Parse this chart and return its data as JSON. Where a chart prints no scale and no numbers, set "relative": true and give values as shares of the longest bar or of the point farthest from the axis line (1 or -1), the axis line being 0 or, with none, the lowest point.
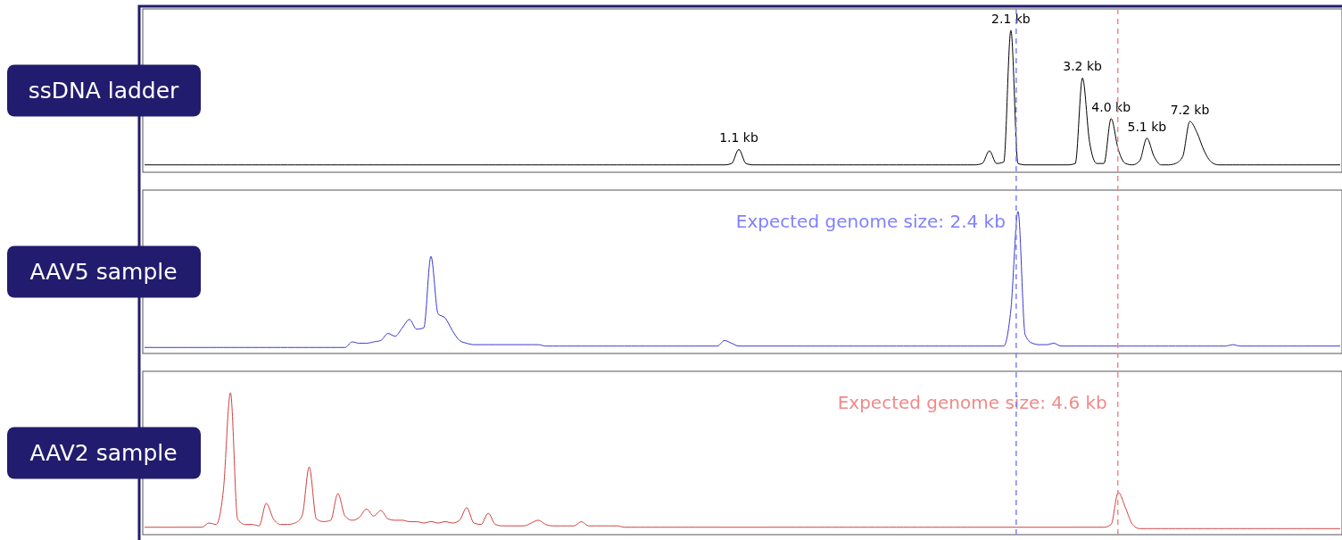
{
  "chart_data": [
    {
      "type": "line",
      "title": "ssDNA ladder",
      "relative": true,
      "categories": [
        null,
        null,
        null,
        null,
        null,
        null,
        null,
        null,
        null,
        null,
        null,
        null,
        null,
        null,
        null,
        null,
        null,
        null,
        null,
        null,
        null,
        null,
        null,
        null,
        null,
        null,
        null,
        null,
        null,
        null,
        null,
        null,
        null,
        null,
        null,
        null,
        null,
        null,
        null,
        null,
        null,
        null,
        null,
        null,
        null,
        null,
        null,
        null,
        null,
        null,
        null,
        null,
        null,
        null,
        null,
        null,
        null,
        null,
        null,
        null,
        null,
        null,
        null,
        null,
        null,
        null,
        null,
        null,
        null,
        null,
        null,
        null,
        null,
        null,
        null,
        null,
        null,
        null,
        null,
        null,
        null,
        null,
        null,
        null,
        null,
        null,
        null,
        null,
        null,
        null,
        null,
        null,
        null,
        null,
        null,
        null,
        null,
        null,
        null,
        null,
        null,
        null,
        null,
        null,
        null,
        null,
        null,
        null,
        null,
        null,
        null,
        null,
        null,
        null,
        null,
        null,
        null,
        null,
        null,
        null,
        null,
        null,
        null,
        null,
        null,
        null,
        null,
        null,
        null,
        null,
        null,
        null,
        null,
        null,
        null,
        null,
        null,
        null,
        null,
        null,
        null,
        null,
        null,
        null,
        null,
        null,
        null,
        null,
        null,
        null,
        null,
        null,
        null,
        null,
        null,
        null,
        null,
        null,
        null,
        null,
        null,
        null,
        null,
        null,
        null,
        null,
        null,
        null
      ],
      "series": [
        {
          "color": "#000000",
          "values": [
            0.04,
            0.04,
            0.04,
            0.04,
            0.04,
            0.04,
            0.04,
            0.04,
            0.04,
            0.04,
            0.04,
            0.04,
            0.04,
            0.04,
            0.04,
            0.04,
            0.04,
            0.04,
            0.04,
            0.04,
            0.04,
            0.04,
            0.04,
            0.04,
            0.04,
            0.04,
            0.04,
            0.04,
            0.04,
            0.04,
            0.04,
            0.04,
            0.04,
            0.04,
            0.04,
            0.04,
            0.04,
            0.04,
            0.04,
            0.04,
            0.04,
            0.04,
            0.04,
            0.04,
            0.04,
            0.04,
            0.04,
            0.04,
            0.04,
            0.04,
            0.04,
            0.04,
            0.04,
            0.04,
            0.04,
            0.04,
            0.04,
            0.04,
            0.04,
            0.04,
            0.04,
            0.04,
            0.04,
            0.04,
            0.04,
            0.04,
            0.04,
            0.04,
            0.04,
            0.04,
            0.04,
            0.04,
            0.04,
            0.04,
            0.04,
            0.04,
            0.04,
            0.04,
            0.04,
            0.04,
            0.04,
            0.04,
            0.05,
            0.15,
            0.05,
            0.04,
            0.04,
            0.04,
            0.04,
            0.04,
            0.04,
            0.04,
            0.04,
            0.04,
            0.04,
            0.04,
            0.04,
            0.04,
            0.04,
            0.04,
            0.04,
            0.04,
            0.04,
            0.04,
            0.04,
            0.04,
            0.04,
            0.04,
            0.04,
            0.04,
            0.04,
            0.04,
            0.04,
            0.04,
            0.04,
            0.04,
            0.04,
            0.05,
            0.14,
            0.05,
            0.06,
            1,
            0.05,
            0.04,
            0.04,
            0.04,
            0.04,
            0.04,
            0.04,
            0.04,
            0.05,
            0.66,
            0.2,
            0.05,
            0.05,
            0.37,
            0.15,
            0.05,
            0.04,
            0.07,
            0.23,
            0.1,
            0.04,
            0.04,
            0.05,
            0.1,
            0.35,
            0.27,
            0.14,
            0.06,
            0.04,
            0.04,
            0.04,
            0.04,
            0.04,
            0.04,
            0.04,
            0.04,
            0.04,
            0.04,
            0.04,
            0.04,
            0.04,
            0.04,
            0.04,
            0.04,
            0.04,
            0.04
          ]
        }
      ],
      "annotations": [
        {
          "text": "1.1 kb",
          "y": 0.15
        },
        {
          "text": "2.1 kb",
          "y": 1
        },
        {
          "text": "3.2 kb",
          "y": 0.66
        },
        {
          "text": "4.0 kb",
          "y": 0.37
        },
        {
          "text": "5.1 kb",
          "y": 0.23
        },
        {
          "text": "7.2 kb",
          "y": 0.35
        }
      ]
    },
    {
      "type": "line",
      "title": "AAV5 sample",
      "relative": true,
      "categories": [
        null,
        null,
        null,
        null,
        null,
        null,
        null,
        null,
        null,
        null,
        null,
        null,
        null,
        null,
        null,
        null,
        null,
        null,
        null,
        null,
        null,
        null,
        null,
        null,
        null,
        null,
        null,
        null,
        null,
        null,
        null,
        null,
        null,
        null,
        null,
        null,
        null,
        null,
        null,
        null,
        null,
        null,
        null,
        null,
        null,
        null,
        null,
        null,
        null,
        null,
        null,
        null,
        null,
        null,
        null,
        null,
        null,
        null,
        null,
        null,
        null,
        null,
        null,
        null,
        null,
        null,
        null,
        null,
        null,
        null,
        null,
        null,
        null,
        null,
        null,
        null,
        null,
        null,
        null,
        null,
        null,
        null,
        null,
        null,
        null,
        null,
        null,
        null,
        null,
        null,
        null,
        null,
        null,
        null,
        null,
        null,
        null,
        null,
        null,
        null,
        null,
        null,
        null,
        null,
        null,
        null,
        null,
        null,
        null,
        null,
        null,
        null,
        null,
        null,
        null,
        null,
        null,
        null,
        null,
        null,
        null,
        null,
        null,
        null,
        null,
        null,
        null,
        null,
        null,
        null,
        null,
        null,
        null,
        null,
        null,
        null,
        null,
        null,
        null,
        null,
        null,
        null,
        null,
        null,
        null,
        null,
        null,
        null,
        null,
        null,
        null,
        null,
        null,
        null,
        null,
        null,
        null,
        null,
        null,
        null,
        null,
        null,
        null,
        null,
        null,
        null,
        null,
        null
      ],
      "series": [
        {
          "color": "#3a3ad0",
          "values": [
            0.03,
            0.03,
            0.03,
            0.03,
            0.03,
            0.03,
            0.03,
            0.03,
            0.03,
            0.03,
            0.03,
            0.03,
            0.03,
            0.03,
            0.03,
            0.03,
            0.03,
            0.03,
            0.03,
            0.03,
            0.03,
            0.03,
            0.03,
            0.03,
            0.03,
            0.03,
            0.03,
            0.03,
            0.03,
            0.07,
            0.06,
            0.06,
            0.07,
            0.08,
            0.13,
            0.11,
            0.17,
            0.23,
            0.16,
            0.17,
            0.68,
            0.27,
            0.24,
            0.15,
            0.08,
            0.06,
            0.05,
            0.05,
            0.05,
            0.05,
            0.05,
            0.05,
            0.05,
            0.05,
            0.05,
            0.05,
            0.04,
            0.04,
            0.04,
            0.04,
            0.04,
            0.04,
            0.04,
            0.04,
            0.04,
            0.04,
            0.04,
            0.04,
            0.04,
            0.04,
            0.04,
            0.04,
            0.04,
            0.04,
            0.04,
            0.04,
            0.04,
            0.04,
            0.04,
            0.04,
            0.04,
            0.08,
            0.06,
            0.04,
            0.04,
            0.04,
            0.04,
            0.04,
            0.04,
            0.04,
            0.04,
            0.04,
            0.04,
            0.04,
            0.04,
            0.04,
            0.04,
            0.04,
            0.04,
            0.04,
            0.04,
            0.04,
            0.04,
            0.04,
            0.04,
            0.04,
            0.04,
            0.04,
            0.04,
            0.04,
            0.04,
            0.04,
            0.04,
            0.04,
            0.04,
            0.04,
            0.04,
            0.04,
            0.04,
            0.04,
            0.04,
            0.3,
            1,
            0.12,
            0.06,
            0.05,
            0.05,
            0.06,
            0.04,
            0.04,
            0.04,
            0.04,
            0.04,
            0.04,
            0.04,
            0.04,
            0.04,
            0.04,
            0.04,
            0.04,
            0.04,
            0.04,
            0.04,
            0.04,
            0.04,
            0.04,
            0.04,
            0.04,
            0.04,
            0.04,
            0.04,
            0.04,
            0.05,
            0.04,
            0.04,
            0.04,
            0.04,
            0.04,
            0.04,
            0.04,
            0.04,
            0.04,
            0.04,
            0.04,
            0.04,
            0.04,
            0.04,
            0.04
          ]
        }
      ],
      "annotations": [
        "Expected genome size: 2.4 kb"
      ]
    },
    {
      "type": "line",
      "title": "AAV2 sample",
      "relative": true,
      "categories": [
        null,
        null,
        null,
        null,
        null,
        null,
        null,
        null,
        null,
        null,
        null,
        null,
        null,
        null,
        null,
        null,
        null,
        null,
        null,
        null,
        null,
        null,
        null,
        null,
        null,
        null,
        null,
        null,
        null,
        null,
        null,
        null,
        null,
        null,
        null,
        null,
        null,
        null,
        null,
        null,
        null,
        null,
        null,
        null,
        null,
        null,
        null,
        null,
        null,
        null,
        null,
        null,
        null,
        null,
        null,
        null,
        null,
        null,
        null,
        null,
        null,
        null,
        null,
        null,
        null,
        null,
        null,
        null,
        null,
        null,
        null,
        null,
        null,
        null,
        null,
        null,
        null,
        null,
        null,
        null,
        null,
        null,
        null,
        null,
        null,
        null,
        null,
        null,
        null,
        null,
        null,
        null,
        null,
        null,
        null,
        null,
        null,
        null,
        null,
        null,
        null,
        null,
        null,
        null,
        null,
        null,
        null,
        null,
        null,
        null,
        null,
        null,
        null,
        null,
        null,
        null,
        null,
        null,
        null,
        null,
        null,
        null,
        null,
        null,
        null,
        null,
        null,
        null,
        null,
        null,
        null,
        null,
        null,
        null,
        null,
        null,
        null,
        null,
        null,
        null,
        null,
        null,
        null,
        null,
        null,
        null,
        null,
        null,
        null,
        null,
        null,
        null,
        null,
        null,
        null,
        null,
        null,
        null,
        null,
        null,
        null,
        null,
        null,
        null,
        null,
        null,
        null,
        null
      ],
      "series": [
        {
          "color": "#d04040",
          "values": [
            0.04,
            0.04,
            0.04,
            0.04,
            0.04,
            0.04,
            0.04,
            0.04,
            0.04,
            0.07,
            0.06,
            0.3,
            1,
            0.1,
            0.06,
            0.06,
            0.05,
            0.21,
            0.1,
            0.06,
            0.06,
            0.07,
            0.12,
            0.47,
            0.1,
            0.08,
            0.09,
            0.28,
            0.12,
            0.09,
            0.11,
            0.17,
            0.12,
            0.16,
            0.1,
            0.09,
            0.09,
            0.08,
            0.08,
            0.07,
            0.08,
            0.07,
            0.08,
            0.07,
            0.09,
            0.18,
            0.07,
            0.06,
            0.14,
            0.06,
            0.05,
            0.05,
            0.05,
            0.05,
            0.07,
            0.09,
            0.06,
            0.05,
            0.05,
            0.05,
            0.05,
            0.08,
            0.05,
            0.05,
            0.05,
            0.05,
            0.05,
            0.04,
            0.04,
            0.04,
            0.04,
            0.04,
            0.04,
            0.04,
            0.04,
            0.04,
            0.04,
            0.04,
            0.04,
            0.04,
            0.04,
            0.04,
            0.04,
            0.04,
            0.04,
            0.04,
            0.04,
            0.04,
            0.04,
            0.04,
            0.04,
            0.04,
            0.04,
            0.04,
            0.04,
            0.04,
            0.04,
            0.04,
            0.04,
            0.04,
            0.04,
            0.04,
            0.04,
            0.04,
            0.04,
            0.04,
            0.04,
            0.04,
            0.04,
            0.04,
            0.04,
            0.04,
            0.04,
            0.04,
            0.04,
            0.04,
            0.04,
            0.04,
            0.04,
            0.04,
            0.04,
            0.04,
            0.04,
            0.04,
            0.04,
            0.04,
            0.04,
            0.04,
            0.04,
            0.04,
            0.04,
            0.04,
            0.04,
            0.04,
            0.04,
            0.06,
            0.29,
            0.18,
            0.06,
            0.03,
            0.03,
            0.03,
            0.03,
            0.03,
            0.03,
            0.03,
            0.03,
            0.03,
            0.03,
            0.03,
            0.03,
            0.03,
            0.03,
            0.03,
            0.03,
            0.03,
            0.03,
            0.03,
            0.03,
            0.03,
            0.03,
            0.03,
            0.03,
            0.03,
            0.03,
            0.03,
            0.03,
            0.03
          ]
        }
      ],
      "annotations": [
        "Expected genome size: 4.6 kb"
      ]
    }
  ]
}
